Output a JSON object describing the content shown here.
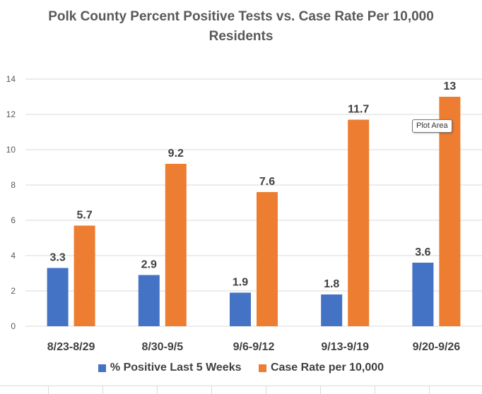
{
  "chart_data": {
    "type": "bar",
    "title": "Polk County Percent Positive Tests vs. Case Rate Per 10,000 Residents",
    "title_lines": [
      "Polk County Percent Positive Tests vs. Case Rate Per 10,000",
      "Residents"
    ],
    "categories": [
      "8/23-8/29",
      "8/30-9/5",
      "9/6-9/12",
      "9/13-9/19",
      "9/20-9/26"
    ],
    "series": [
      {
        "name": "% Positive Last 5 Weeks",
        "values": [
          3.3,
          2.9,
          1.9,
          1.8,
          3.6
        ],
        "color": "#4472C4"
      },
      {
        "name": "Case Rate per 10,000",
        "values": [
          5.7,
          9.2,
          7.6,
          11.7,
          13
        ],
        "color": "#ED7D31"
      }
    ],
    "ylim": [
      0,
      14
    ],
    "yticks": [
      0,
      2,
      4,
      6,
      8,
      10,
      12,
      14
    ],
    "grid": true,
    "legend": "bottom",
    "xlabel": "",
    "ylabel": ""
  },
  "tooltip": "Plot Area",
  "colors": {
    "grid": "#d9d9d9",
    "axis_text": "#595959",
    "label_text": "#404040"
  }
}
